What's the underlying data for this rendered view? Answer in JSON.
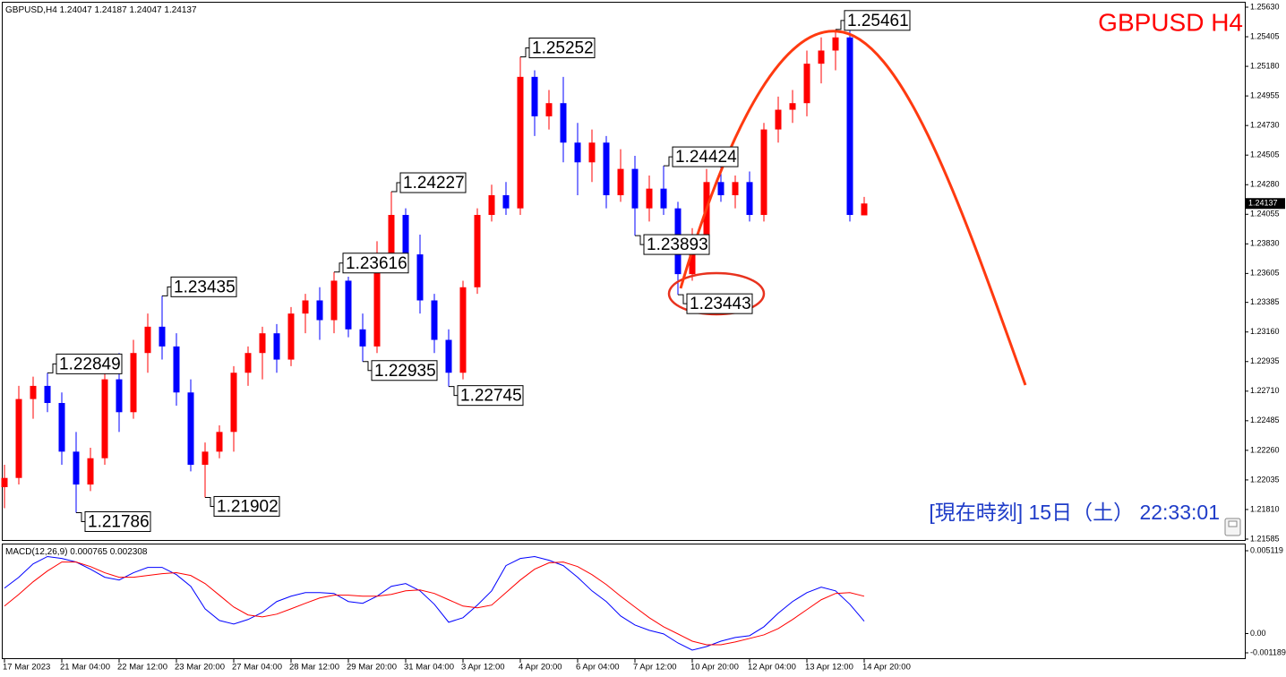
{
  "chart_data": [
    {
      "type": "candlestick",
      "title": "GBPUSD H4",
      "symbol": "GBPUSD,H4",
      "clock": "[現在時刻] 15日（土） 22:33:01",
      "categories": [
        "17 Mar 2023",
        null,
        null,
        null,
        "21 Mar 04:00",
        null,
        null,
        null,
        "22 Mar 12:00",
        null,
        null,
        null,
        "23 Mar 20:00",
        null,
        null,
        null,
        "27 Mar 04:00",
        null,
        null,
        null,
        "28 Mar 12:00",
        null,
        null,
        null,
        "29 Mar 20:00",
        null,
        null,
        null,
        "31 Mar 04:00",
        null,
        null,
        null,
        "3 Apr 12:00",
        null,
        null,
        null,
        "4 Apr 20:00",
        null,
        null,
        null,
        "6 Apr 04:00",
        null,
        null,
        null,
        "7 Apr 12:00",
        null,
        null,
        null,
        "10 Apr 20:00",
        null,
        null,
        null,
        "12 Apr 04:00",
        null,
        null,
        null,
        "13 Apr 12:00",
        null,
        null,
        null,
        "14 Apr 20:00"
      ],
      "candles": [
        [
          1.2198,
          1.2215,
          1.2182,
          1.2205
        ],
        [
          1.2205,
          1.2275,
          1.22,
          1.2265
        ],
        [
          1.2265,
          1.2282,
          1.225,
          1.2275
        ],
        [
          1.2275,
          1.22849,
          1.2255,
          1.2262
        ],
        [
          1.2262,
          1.227,
          1.2215,
          1.2225
        ],
        [
          1.2225,
          1.224,
          1.21786,
          1.22
        ],
        [
          1.22,
          1.2228,
          1.2195,
          1.222
        ],
        [
          1.222,
          1.2295,
          1.2215,
          1.228
        ],
        [
          1.228,
          1.23,
          1.224,
          1.2255
        ],
        [
          1.2255,
          1.231,
          1.225,
          1.23
        ],
        [
          1.23,
          1.233,
          1.2285,
          1.232
        ],
        [
          1.232,
          1.23435,
          1.2295,
          1.2305
        ],
        [
          1.2305,
          1.2315,
          1.226,
          1.227
        ],
        [
          1.227,
          1.228,
          1.221,
          1.2215
        ],
        [
          1.2215,
          1.2232,
          1.21902,
          1.2225
        ],
        [
          1.2225,
          1.2245,
          1.222,
          1.224
        ],
        [
          1.224,
          1.229,
          1.2225,
          1.2285
        ],
        [
          1.2285,
          1.2305,
          1.2275,
          1.23
        ],
        [
          1.23,
          1.232,
          1.228,
          1.2315
        ],
        [
          1.2315,
          1.2322,
          1.2285,
          1.2295
        ],
        [
          1.2295,
          1.2335,
          1.229,
          1.233
        ],
        [
          1.233,
          1.2345,
          1.2315,
          1.234
        ],
        [
          1.234,
          1.235,
          1.231,
          1.2325
        ],
        [
          1.2325,
          1.23616,
          1.2315,
          1.2355
        ],
        [
          1.2355,
          1.2358,
          1.2312,
          1.2318
        ],
        [
          1.2318,
          1.233,
          1.22935,
          1.2305
        ],
        [
          1.2305,
          1.2385,
          1.23,
          1.2375
        ],
        [
          1.2375,
          1.24227,
          1.2365,
          1.2405
        ],
        [
          1.2405,
          1.241,
          1.2365,
          1.2375
        ],
        [
          1.2375,
          1.239,
          1.233,
          1.234
        ],
        [
          1.234,
          1.2345,
          1.23,
          1.231
        ],
        [
          1.231,
          1.2318,
          1.22745,
          1.2285
        ],
        [
          1.2285,
          1.2355,
          1.228,
          1.235
        ],
        [
          1.235,
          1.241,
          1.2345,
          1.2405
        ],
        [
          1.2405,
          1.2428,
          1.24,
          1.242
        ],
        [
          1.242,
          1.243,
          1.2405,
          1.241
        ],
        [
          1.241,
          1.25252,
          1.2405,
          1.251
        ],
        [
          1.251,
          1.2515,
          1.2465,
          1.248
        ],
        [
          1.248,
          1.25,
          1.247,
          1.249
        ],
        [
          1.249,
          1.251,
          1.2445,
          1.246
        ],
        [
          1.246,
          1.2475,
          1.242,
          1.2445
        ],
        [
          1.2445,
          1.247,
          1.243,
          1.246
        ],
        [
          1.246,
          1.2465,
          1.241,
          1.242
        ],
        [
          1.242,
          1.2455,
          1.2415,
          1.244
        ],
        [
          1.244,
          1.245,
          1.23893,
          1.241
        ],
        [
          1.241,
          1.2435,
          1.24,
          1.2425
        ],
        [
          1.2425,
          1.24424,
          1.2405,
          1.241
        ],
        [
          1.241,
          1.2415,
          1.23443,
          1.236
        ],
        [
          1.236,
          1.2395,
          1.2355,
          1.239
        ],
        [
          1.239,
          1.244,
          1.2385,
          1.243
        ],
        [
          1.243,
          1.2445,
          1.2415,
          1.242
        ],
        [
          1.242,
          1.2435,
          1.241,
          1.243
        ],
        [
          1.243,
          1.2438,
          1.24,
          1.2405
        ],
        [
          1.2405,
          1.2475,
          1.24,
          1.247
        ],
        [
          1.247,
          1.2495,
          1.246,
          1.2485
        ],
        [
          1.2485,
          1.25,
          1.2475,
          1.249
        ],
        [
          1.249,
          1.253,
          1.248,
          1.252
        ],
        [
          1.252,
          1.254,
          1.2505,
          1.253
        ],
        [
          1.253,
          1.25461,
          1.2515,
          1.254
        ],
        [
          1.254,
          1.2545,
          1.24,
          1.2405
        ],
        [
          1.24047,
          1.24187,
          1.24047,
          1.24137
        ]
      ],
      "up_color": "#ff0000",
      "down_color": "#0000ff",
      "ylim": [
        1.21585,
        1.2563
      ],
      "yticks": [
        {
          "value": 1.2563,
          "label": "1.25630"
        },
        1.25405,
        {
          "value": 1.2518,
          "label": "1.25180"
        },
        1.24955,
        {
          "value": 1.2473,
          "label": "1.24730"
        },
        1.24505,
        {
          "value": 1.2428,
          "label": "1.24280"
        },
        1.24055,
        {
          "value": 1.2383,
          "label": "1.23830"
        },
        1.23605,
        1.23385,
        {
          "value": 1.2316,
          "label": "1.23160"
        },
        1.22935,
        {
          "value": 1.2271,
          "label": "1.22710"
        },
        1.22485,
        {
          "value": 1.2226,
          "label": "1.22260"
        },
        1.22035,
        {
          "value": 1.2181,
          "label": "1.21810"
        },
        1.21585
      ],
      "price_labels": {
        "x": [
          3,
          5,
          11,
          14,
          23,
          25,
          27,
          31,
          36,
          44,
          46,
          47,
          58
        ],
        "values": [
          1.22849,
          1.21786,
          1.23435,
          1.21902,
          1.23616,
          1.22935,
          1.24227,
          1.22745,
          1.25252,
          1.23893,
          1.24424,
          1.23443,
          1.25461
        ]
      }
    },
    {
      "type": "line",
      "label": "MACD(12,26,9)",
      "series": [
        {
          "color": "#0000ff",
          "values": [
            0.00281,
            0.00348,
            0.00431,
            0.00476,
            0.00464,
            0.00442,
            0.00398,
            0.00348,
            0.00331,
            0.00376,
            0.00409,
            0.00409,
            0.00364,
            0.00292,
            0.00153,
            0.00081,
            0.00059,
            0.00087,
            0.00131,
            0.00198,
            0.00231,
            0.00253,
            0.00253,
            0.00248,
            0.00198,
            0.00187,
            0.00231,
            0.00292,
            0.00309,
            0.00264,
            0.00181,
            0.0007,
            0.00098,
            0.00176,
            0.00264,
            0.0042,
            0.00464,
            0.00476,
            0.00453,
            0.0042,
            0.00348,
            0.00264,
            0.00198,
            0.00109,
            0.00053,
            0.0002,
            -2e-05,
            -0.00058,
            -0.00102,
            -0.0008,
            -0.00047,
            -0.00024,
            -0.00013,
            0.00042,
            0.00126,
            0.00198,
            0.00253,
            0.00287,
            0.00264,
            0.00181,
            0.000765
          ]
        },
        {
          "color": "#ff0000",
          "values": [
            0.0017,
            0.00242,
            0.0032,
            0.00387,
            0.00442,
            0.00442,
            0.00414,
            0.00376,
            0.00348,
            0.00348,
            0.00359,
            0.0037,
            0.00376,
            0.00359,
            0.00309,
            0.00237,
            0.00164,
            0.00115,
            0.00103,
            0.0012,
            0.00153,
            0.00187,
            0.0022,
            0.00237,
            0.00237,
            0.00231,
            0.00231,
            0.00242,
            0.00264,
            0.0027,
            0.00248,
            0.00209,
            0.0017,
            0.00159,
            0.00176,
            0.00253,
            0.00331,
            0.00398,
            0.00437,
            0.00442,
            0.00414,
            0.00364,
            0.00303,
            0.00231,
            0.00164,
            0.00098,
            0.00042,
            -2e-05,
            -0.00047,
            -0.00069,
            -0.00069,
            -0.00052,
            -0.0003,
            -8e-05,
            0.00031,
            0.00087,
            0.00148,
            0.00209,
            0.00248,
            0.00253,
            0.002308
          ]
        }
      ],
      "ylim": [
        -0.001189,
        0.005119
      ],
      "yticks": [
        0.005119,
        {
          "value": 0,
          "label": "0.00"
        },
        -0.001189
      ]
    }
  ]
}
